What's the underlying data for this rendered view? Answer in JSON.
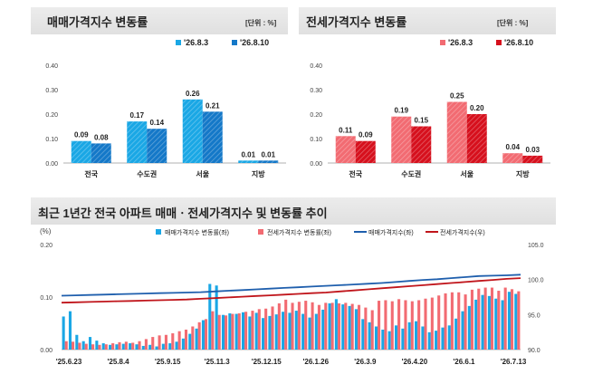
{
  "panels": {
    "sale": {
      "title": "매매가격지수 변동률",
      "unit": "[단위 : %]"
    },
    "jeonse": {
      "title": "전세가격지수 변동률",
      "unit": "[단위 : %]"
    },
    "trend": {
      "title": "최근 1년간 전국 아파트 매매ㆍ전세가격지수 및 변동률 추이"
    }
  },
  "colors": {
    "sale_prev": "#1aa7e5",
    "sale_cur": "#1478c8",
    "jeonse_prev": "#f26b72",
    "jeonse_cur": "#d6101d",
    "line_sale": "#1f5fad",
    "line_jeonse": "#c0151b"
  },
  "chart_data": [
    {
      "type": "bar",
      "categories": [
        "전국",
        "수도권",
        "서울",
        "지방"
      ],
      "series": [
        {
          "name": "'26.8.3",
          "values": [
            0.09,
            0.17,
            0.26,
            0.01
          ]
        },
        {
          "name": "'26.8.10",
          "values": [
            0.08,
            0.14,
            0.21,
            0.01
          ]
        }
      ],
      "ylim": [
        0,
        0.4
      ],
      "yticks": [
        "0.00",
        "0.10",
        "0.20",
        "0.30",
        "0.40"
      ],
      "data_labels": [
        [
          "0.09",
          "0.17",
          "0.26",
          "0.01"
        ],
        [
          "0.08",
          "0.14",
          "0.21",
          "0.01"
        ]
      ],
      "legend": "top-right",
      "grid": false
    },
    {
      "type": "bar",
      "categories": [
        "전국",
        "수도권",
        "서울",
        "지방"
      ],
      "series": [
        {
          "name": "'26.8.3",
          "values": [
            0.11,
            0.19,
            0.25,
            0.04
          ]
        },
        {
          "name": "'26.8.10",
          "values": [
            0.09,
            0.15,
            0.2,
            0.03
          ]
        }
      ],
      "ylim": [
        0,
        0.4
      ],
      "yticks": [
        "0.00",
        "0.10",
        "0.20",
        "0.30",
        "0.40"
      ],
      "data_labels": [
        [
          "0.11",
          "0.19",
          "0.25",
          "0.04"
        ],
        [
          "0.09",
          "0.15",
          "0.20",
          "0.03"
        ]
      ],
      "legend": "top-right",
      "grid": false
    },
    {
      "type": "bar",
      "ylabel_left": "(%)",
      "ylim_left": [
        0,
        0.2
      ],
      "yticks_left": [
        "0.00",
        "0.10",
        "0.20"
      ],
      "ylim_right": [
        90,
        105
      ],
      "yticks_right": [
        "90.0",
        "95.0",
        "100.0",
        "105.0"
      ],
      "xtick_labels": [
        "'25.6.23",
        "'25.8.4",
        "'25.9.15",
        "'25.11.3",
        "'25.12.15",
        "'26.1.26",
        "'26.3.9",
        "'26.4.20",
        "'26.6.1",
        "'26.7.13"
      ],
      "legend": "top",
      "series": [
        {
          "name": "매매가격지수 변동률(좌)",
          "kind": "bar",
          "axis": "left",
          "values": [
            0.063,
            0.073,
            0.028,
            0.016,
            0.024,
            0.017,
            0.012,
            0.009,
            0.01,
            0.011,
            0.012,
            0.01,
            0.007,
            0.009,
            0.006,
            0.011,
            0.012,
            0.015,
            0.021,
            0.03,
            0.04,
            0.056,
            0.125,
            0.122,
            0.066,
            0.069,
            0.068,
            0.071,
            0.063,
            0.07,
            0.06,
            0.064,
            0.067,
            0.072,
            0.07,
            0.074,
            0.068,
            0.061,
            0.068,
            0.076,
            0.088,
            0.096,
            0.086,
            0.083,
            0.077,
            0.058,
            0.052,
            0.044,
            0.038,
            0.035,
            0.046,
            0.04,
            0.052,
            0.054,
            0.044,
            0.033,
            0.036,
            0.042,
            0.046,
            0.059,
            0.073,
            0.083,
            0.095,
            0.104,
            0.102,
            0.097,
            0.094,
            0.11,
            0.106
          ]
        },
        {
          "name": "전세가격지수 변동률(좌)",
          "kind": "bar",
          "axis": "right_rate",
          "values": [
            0.016,
            0.015,
            0.013,
            0.011,
            0.01,
            0.009,
            0.01,
            0.012,
            0.014,
            0.015,
            0.013,
            0.016,
            0.02,
            0.024,
            0.027,
            0.028,
            0.031,
            0.035,
            0.038,
            0.044,
            0.052,
            0.058,
            0.073,
            0.066,
            0.065,
            0.068,
            0.069,
            0.072,
            0.074,
            0.077,
            0.078,
            0.082,
            0.088,
            0.095,
            0.089,
            0.091,
            0.093,
            0.09,
            0.085,
            0.089,
            0.089,
            0.088,
            0.089,
            0.087,
            0.085,
            0.08,
            0.075,
            0.093,
            0.094,
            0.092,
            0.096,
            0.094,
            0.092,
            0.094,
            0.097,
            0.099,
            0.103,
            0.107,
            0.109,
            0.109,
            0.105,
            0.114,
            0.116,
            0.118,
            0.118,
            0.112,
            0.118,
            0.115,
            0.111
          ]
        },
        {
          "name": "매매가격지수(좌)",
          "kind": "line",
          "axis": "right",
          "values": [
            97.7,
            97.75,
            97.8,
            97.85,
            97.9,
            97.95,
            98.0,
            98.05,
            98.1,
            98.15,
            98.2,
            98.3,
            98.4,
            98.5,
            98.6,
            98.7,
            98.8,
            98.9,
            99.0,
            99.1,
            99.2,
            99.3,
            99.4,
            99.5,
            99.65,
            99.8,
            99.95,
            100.05,
            100.2,
            100.35,
            100.5,
            100.55,
            100.6,
            100.7
          ]
        },
        {
          "name": "전세가격지수(우)",
          "kind": "line",
          "axis": "right",
          "values": [
            96.7,
            96.75,
            96.8,
            96.85,
            96.9,
            96.95,
            97.0,
            97.05,
            97.1,
            97.15,
            97.25,
            97.35,
            97.45,
            97.55,
            97.65,
            97.75,
            97.85,
            97.95,
            98.05,
            98.15,
            98.3,
            98.45,
            98.6,
            98.75,
            98.9,
            99.05,
            99.2,
            99.35,
            99.5,
            99.65,
            99.8,
            99.95,
            100.1,
            100.2
          ]
        }
      ]
    }
  ]
}
